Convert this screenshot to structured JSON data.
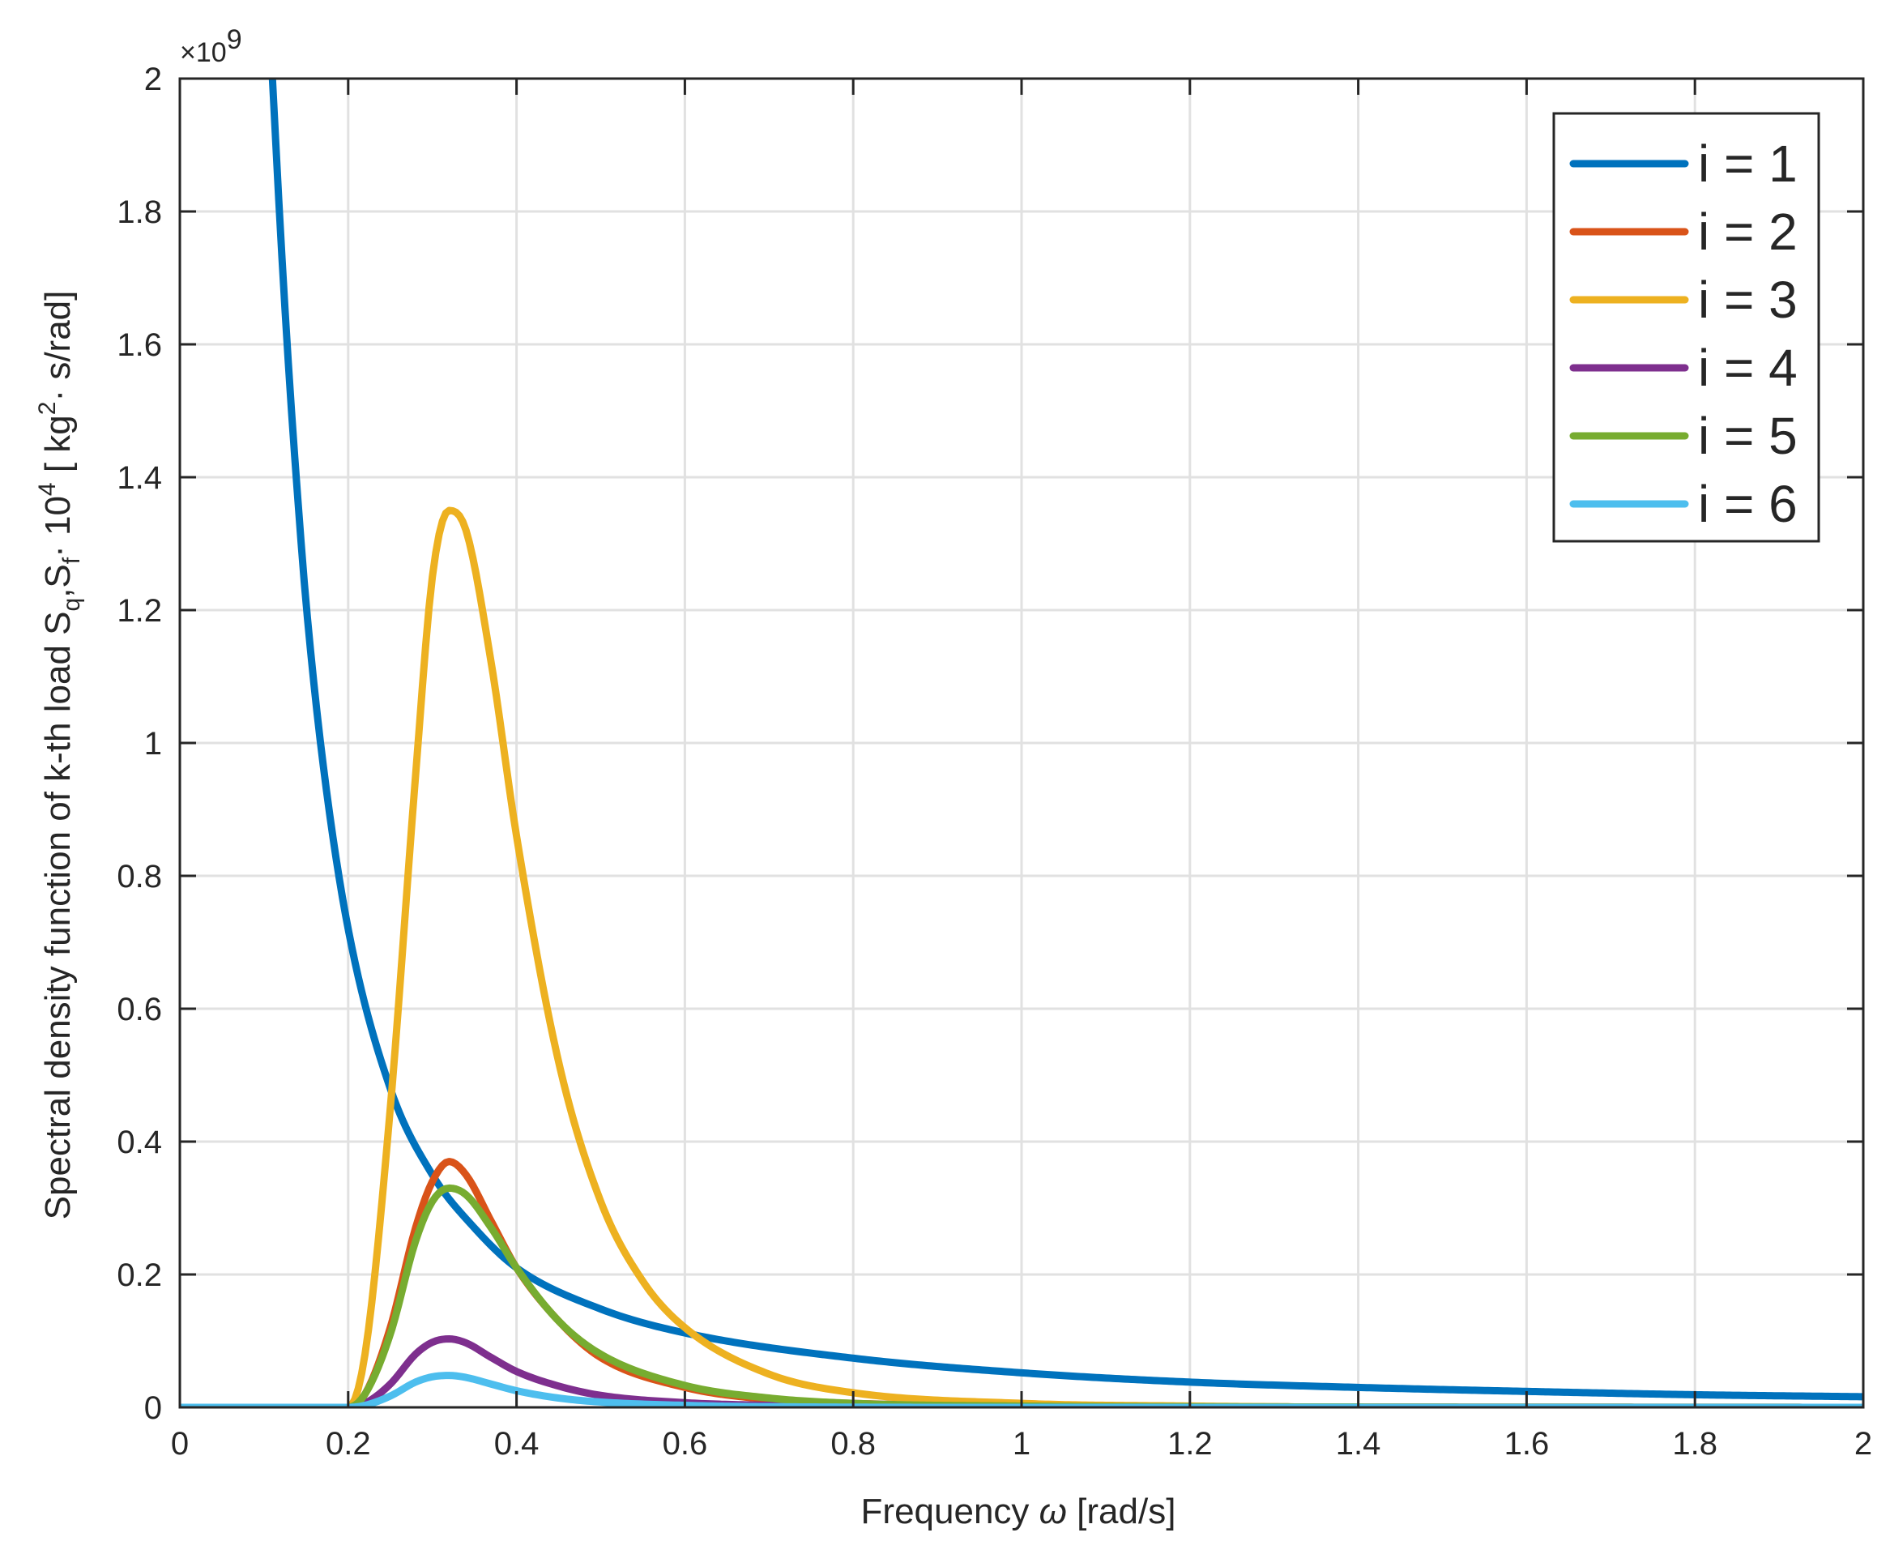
{
  "chart_data": {
    "type": "line",
    "title": "",
    "xlabel": {
      "prefix": "Frequency ",
      "symbol": "ω",
      "suffix": " [rad/s]"
    },
    "ylabel": {
      "part1": "Spectral density function of k-th load S",
      "sub1": "q",
      "part2": ",S",
      "sub2": "f",
      "part3": "· 10",
      "sup1": "4",
      "part4": " [ kg",
      "sup2": "2",
      "part5": "· s/rad]"
    },
    "y_multiplier": {
      "prefix": "×10",
      "exponent": "9"
    },
    "xlim": [
      0,
      2
    ],
    "ylim": [
      0,
      2
    ],
    "x_ticks": [
      "0",
      "0.2",
      "0.4",
      "0.6",
      "0.8",
      "1",
      "1.2",
      "1.4",
      "1.6",
      "1.8",
      "2"
    ],
    "y_ticks": [
      "0",
      "0.2",
      "0.4",
      "0.6",
      "0.8",
      "1",
      "1.2",
      "1.4",
      "1.6",
      "1.8",
      "2"
    ],
    "grid": true,
    "legend_position": "top-right",
    "series": [
      {
        "name": "i = 1",
        "color": "#0072BD",
        "x": [
          0.11,
          0.12,
          0.13,
          0.14,
          0.15,
          0.17,
          0.2,
          0.25,
          0.3,
          0.35,
          0.4,
          0.5,
          0.6,
          0.8,
          1.0,
          1.2,
          1.4,
          1.6,
          1.8,
          2.0
        ],
        "values": [
          2.0,
          1.76,
          1.55,
          1.37,
          1.21,
          0.97,
          0.72,
          0.48,
          0.35,
          0.27,
          0.21,
          0.148,
          0.112,
          0.074,
          0.052,
          0.038,
          0.03,
          0.024,
          0.019,
          0.016
        ]
      },
      {
        "name": "i = 2",
        "color": "#D95319",
        "x": [
          0,
          0.2,
          0.22,
          0.25,
          0.28,
          0.3,
          0.32,
          0.34,
          0.37,
          0.4,
          0.45,
          0.5,
          0.6,
          0.7,
          0.8,
          1.0,
          1.2,
          2.0
        ],
        "values": [
          0,
          0,
          0.02,
          0.12,
          0.27,
          0.34,
          0.37,
          0.35,
          0.28,
          0.21,
          0.13,
          0.075,
          0.03,
          0.012,
          0.006,
          0.002,
          0.001,
          0
        ]
      },
      {
        "name": "i = 3",
        "color": "#EDB120",
        "x": [
          0,
          0.2,
          0.22,
          0.25,
          0.28,
          0.3,
          0.32,
          0.34,
          0.37,
          0.4,
          0.45,
          0.5,
          0.55,
          0.6,
          0.7,
          0.8,
          1.0,
          1.2,
          1.5,
          2.0
        ],
        "values": [
          0,
          0,
          0.08,
          0.45,
          0.95,
          1.25,
          1.35,
          1.32,
          1.12,
          0.86,
          0.52,
          0.31,
          0.19,
          0.12,
          0.05,
          0.022,
          0.006,
          0.002,
          0,
          0
        ]
      },
      {
        "name": "i = 4",
        "color": "#7E2F8E",
        "x": [
          0,
          0.2,
          0.22,
          0.25,
          0.28,
          0.3,
          0.32,
          0.34,
          0.37,
          0.4,
          0.45,
          0.5,
          0.6,
          0.7,
          0.8,
          1.0,
          2.0
        ],
        "values": [
          0,
          0,
          0.006,
          0.035,
          0.08,
          0.098,
          0.103,
          0.097,
          0.075,
          0.054,
          0.032,
          0.018,
          0.007,
          0.003,
          0.001,
          0,
          0
        ]
      },
      {
        "name": "i = 5",
        "color": "#77AC30",
        "x": [
          0,
          0.2,
          0.22,
          0.25,
          0.28,
          0.3,
          0.32,
          0.34,
          0.37,
          0.4,
          0.45,
          0.5,
          0.6,
          0.7,
          0.8,
          1.0,
          1.2,
          2.0
        ],
        "values": [
          0,
          0,
          0.02,
          0.11,
          0.25,
          0.31,
          0.33,
          0.32,
          0.27,
          0.21,
          0.13,
          0.08,
          0.033,
          0.014,
          0.006,
          0.002,
          0.001,
          0
        ]
      },
      {
        "name": "i = 6",
        "color": "#4DBEEE",
        "x": [
          0,
          0.2,
          0.22,
          0.25,
          0.28,
          0.3,
          0.32,
          0.34,
          0.37,
          0.4,
          0.45,
          0.5,
          0.6,
          0.7,
          1.0,
          2.0
        ],
        "values": [
          0,
          0,
          0.003,
          0.017,
          0.038,
          0.046,
          0.048,
          0.045,
          0.035,
          0.025,
          0.014,
          0.008,
          0.003,
          0.001,
          0,
          0
        ]
      }
    ]
  }
}
